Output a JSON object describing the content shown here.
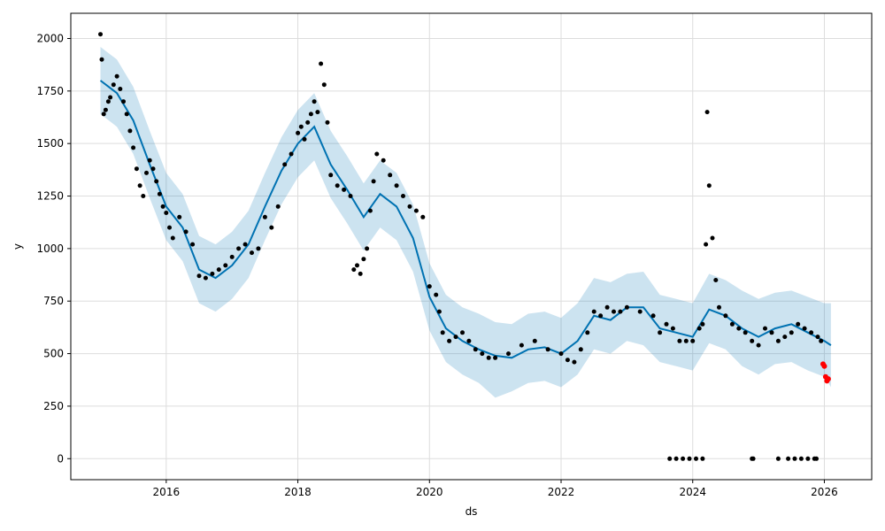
{
  "chart_data": {
    "type": "line",
    "title": "",
    "xlabel": "ds",
    "ylabel": "y",
    "xlim": [
      2014.55,
      2026.72
    ],
    "ylim": [
      -100,
      2120
    ],
    "grid": true,
    "x_ticks": [
      2016,
      2018,
      2020,
      2022,
      2024,
      2026
    ],
    "x_tick_labels": [
      "2016",
      "2018",
      "2020",
      "2022",
      "2024",
      "2026"
    ],
    "y_ticks": [
      0,
      250,
      500,
      750,
      1000,
      1250,
      1500,
      1750,
      2000
    ],
    "y_tick_labels": [
      "0",
      "250",
      "500",
      "750",
      "1000",
      "1250",
      "1500",
      "1750",
      "2000"
    ],
    "colors": {
      "forecast_line": "#0072B2",
      "uncertainty_band": "#0072B2",
      "observed_points": "#000000",
      "holdout_points": "#ff0000",
      "grid": "#dddddd"
    },
    "forecast": {
      "x": [
        2015.0,
        2015.25,
        2015.5,
        2015.75,
        2016.0,
        2016.25,
        2016.5,
        2016.75,
        2017.0,
        2017.25,
        2017.5,
        2017.75,
        2018.0,
        2018.25,
        2018.5,
        2018.75,
        2019.0,
        2019.25,
        2019.5,
        2019.75,
        2020.0,
        2020.25,
        2020.5,
        2020.75,
        2021.0,
        2021.25,
        2021.5,
        2021.75,
        2022.0,
        2022.25,
        2022.5,
        2022.75,
        2023.0,
        2023.25,
        2023.5,
        2023.75,
        2024.0,
        2024.25,
        2024.5,
        2024.75,
        2025.0,
        2025.25,
        2025.5,
        2025.75,
        2026.0,
        2026.1
      ],
      "yhat": [
        1800,
        1740,
        1610,
        1400,
        1200,
        1100,
        900,
        860,
        920,
        1020,
        1200,
        1370,
        1500,
        1580,
        1400,
        1280,
        1150,
        1260,
        1200,
        1050,
        770,
        620,
        560,
        520,
        490,
        480,
        520,
        530,
        500,
        560,
        680,
        660,
        720,
        720,
        620,
        600,
        580,
        710,
        680,
        620,
        580,
        620,
        640,
        600,
        560,
        540
      ],
      "yhat_lower": [
        1640,
        1580,
        1450,
        1240,
        1040,
        940,
        740,
        700,
        760,
        860,
        1040,
        1210,
        1340,
        1420,
        1240,
        1120,
        990,
        1100,
        1040,
        890,
        610,
        460,
        400,
        360,
        290,
        320,
        360,
        370,
        340,
        400,
        520,
        500,
        560,
        540,
        460,
        440,
        420,
        550,
        520,
        440,
        400,
        450,
        460,
        420,
        390,
        340
      ],
      "yhat_upper": [
        1960,
        1900,
        1770,
        1560,
        1360,
        1260,
        1060,
        1020,
        1080,
        1180,
        1360,
        1530,
        1660,
        1740,
        1560,
        1440,
        1310,
        1420,
        1360,
        1210,
        930,
        780,
        720,
        690,
        650,
        640,
        690,
        700,
        670,
        740,
        860,
        840,
        880,
        890,
        780,
        760,
        740,
        880,
        850,
        800,
        760,
        790,
        800,
        770,
        740,
        740
      ]
    },
    "observed": {
      "x": [
        2015.0,
        2015.02,
        2015.05,
        2015.08,
        2015.12,
        2015.15,
        2015.2,
        2015.25,
        2015.3,
        2015.35,
        2015.4,
        2015.45,
        2015.5,
        2015.55,
        2015.6,
        2015.65,
        2015.7,
        2015.75,
        2015.8,
        2015.85,
        2015.9,
        2015.95,
        2016.0,
        2016.05,
        2016.1,
        2016.2,
        2016.3,
        2016.4,
        2016.5,
        2016.6,
        2016.7,
        2016.8,
        2016.9,
        2017.0,
        2017.1,
        2017.2,
        2017.3,
        2017.4,
        2017.5,
        2017.6,
        2017.7,
        2017.8,
        2017.9,
        2018.0,
        2018.05,
        2018.1,
        2018.15,
        2018.2,
        2018.25,
        2018.3,
        2018.35,
        2018.4,
        2018.45,
        2018.5,
        2018.6,
        2018.7,
        2018.8,
        2018.85,
        2018.9,
        2018.95,
        2019.0,
        2019.05,
        2019.1,
        2019.15,
        2019.2,
        2019.3,
        2019.4,
        2019.5,
        2019.6,
        2019.7,
        2019.8,
        2019.9,
        2020.0,
        2020.1,
        2020.15,
        2020.2,
        2020.3,
        2020.4,
        2020.5,
        2020.6,
        2020.7,
        2020.8,
        2020.9,
        2021.0,
        2021.2,
        2021.4,
        2021.6,
        2021.8,
        2022.0,
        2022.1,
        2022.2,
        2022.3,
        2022.4,
        2022.5,
        2022.6,
        2022.7,
        2022.8,
        2022.9,
        2023.0,
        2023.2,
        2023.4,
        2023.5,
        2023.6,
        2023.7,
        2023.8,
        2023.9,
        2024.0,
        2024.1,
        2024.15,
        2024.2,
        2024.22,
        2024.25,
        2024.3,
        2024.35,
        2024.4,
        2024.5,
        2024.6,
        2024.7,
        2024.8,
        2024.9,
        2025.0,
        2025.1,
        2025.2,
        2025.3,
        2025.4,
        2025.5,
        2025.6,
        2025.7,
        2025.8,
        2025.9,
        2025.95,
        2023.65,
        2023.75,
        2023.85,
        2023.95,
        2024.05,
        2024.15,
        2024.9,
        2024.92,
        2025.3,
        2025.45,
        2025.55,
        2025.65,
        2025.75,
        2025.85,
        2025.88
      ],
      "y": [
        2020,
        1900,
        1640,
        1660,
        1700,
        1720,
        1780,
        1820,
        1760,
        1700,
        1640,
        1560,
        1480,
        1380,
        1300,
        1250,
        1360,
        1420,
        1380,
        1320,
        1260,
        1200,
        1170,
        1100,
        1050,
        1150,
        1080,
        1020,
        870,
        860,
        880,
        900,
        920,
        960,
        1000,
        1020,
        980,
        1000,
        1150,
        1100,
        1200,
        1400,
        1450,
        1550,
        1580,
        1520,
        1600,
        1640,
        1700,
        1650,
        1880,
        1780,
        1600,
        1350,
        1300,
        1280,
        1250,
        900,
        920,
        880,
        950,
        1000,
        1180,
        1320,
        1450,
        1420,
        1350,
        1300,
        1250,
        1200,
        1180,
        1150,
        820,
        780,
        700,
        600,
        560,
        580,
        600,
        560,
        520,
        500,
        480,
        480,
        500,
        540,
        560,
        520,
        500,
        470,
        460,
        520,
        600,
        700,
        680,
        720,
        700,
        700,
        720,
        700,
        680,
        600,
        640,
        620,
        560,
        560,
        560,
        620,
        640,
        1020,
        1650,
        1300,
        1050,
        850,
        720,
        680,
        640,
        620,
        600,
        560,
        540,
        620,
        600,
        560,
        580,
        600,
        640,
        620,
        600,
        580,
        560,
        0,
        0,
        0,
        0,
        0,
        0,
        0,
        0,
        0,
        0,
        0,
        0,
        0,
        0,
        0
      ]
    },
    "holdout": {
      "x": [
        2025.98,
        2026.0,
        2026.02,
        2026.04,
        2026.06
      ],
      "y": [
        450,
        440,
        390,
        370,
        380
      ]
    }
  }
}
